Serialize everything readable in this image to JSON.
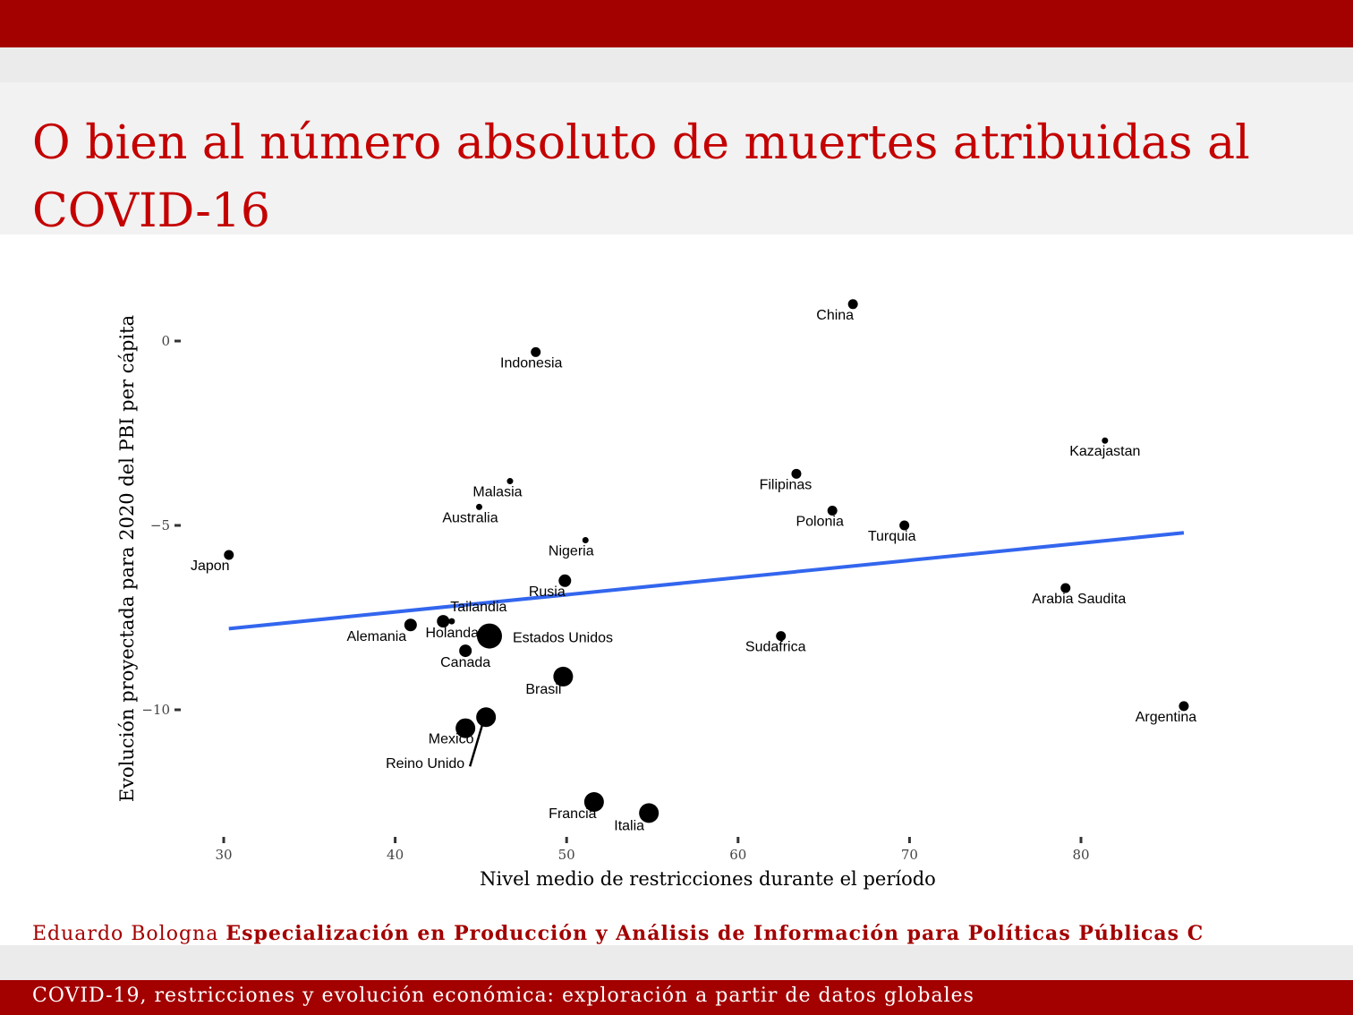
{
  "slide": {
    "title": "O bien al número absoluto de muertes atribuidas al COVID-16",
    "footer_author": "Eduardo Bologna",
    "footer_course": "Especialización en Producción y Análisis de Información para Políticas Públicas C",
    "bottom_title": "COVID-19, restricciones y evolución económica: exploración a partir de datos globales"
  },
  "colors": {
    "brand": "#a30000",
    "title": "#c40000",
    "fit_line": "#3366ee",
    "points": "#000000"
  },
  "chart_data": {
    "type": "scatter",
    "xlabel": "Nivel medio de restricciones durante el período",
    "ylabel": "Evolución proyectada para 2020 del PBI per cápita",
    "xlim": [
      27,
      89
    ],
    "ylim": [
      -13.5,
      1.6
    ],
    "xticks": [
      30,
      40,
      50,
      60,
      70,
      80
    ],
    "yticks": [
      0,
      -5,
      -10
    ],
    "ytick_labels": [
      "0",
      "−5",
      "−10"
    ],
    "grid": false,
    "legend": "none",
    "points": [
      {
        "label": "China",
        "x": 66.7,
        "y": 1.0,
        "size": "small"
      },
      {
        "label": "Indonesia",
        "x": 48.2,
        "y": -0.3,
        "size": "small"
      },
      {
        "label": "Kazajastan",
        "x": 81.4,
        "y": -2.7,
        "size": "tiny"
      },
      {
        "label": "Filipinas",
        "x": 63.4,
        "y": -3.6,
        "size": "small"
      },
      {
        "label": "Malasia",
        "x": 46.7,
        "y": -3.8,
        "size": "tiny"
      },
      {
        "label": "Australia",
        "x": 44.9,
        "y": -4.5,
        "size": "tiny"
      },
      {
        "label": "Polonia",
        "x": 65.5,
        "y": -4.6,
        "size": "small"
      },
      {
        "label": "Turquia",
        "x": 69.7,
        "y": -5.0,
        "size": "small"
      },
      {
        "label": "Nigeria",
        "x": 51.1,
        "y": -5.4,
        "size": "tiny"
      },
      {
        "label": "Japon",
        "x": 30.3,
        "y": -5.8,
        "size": "small"
      },
      {
        "label": "Rusia",
        "x": 49.9,
        "y": -6.5,
        "size": "medium"
      },
      {
        "label": "Arabia Saudita",
        "x": 79.1,
        "y": -6.7,
        "size": "small"
      },
      {
        "label": "Tailandia",
        "x": 43.3,
        "y": -7.6,
        "size": "tiny"
      },
      {
        "label": "Holanda",
        "x": 42.8,
        "y": -7.6,
        "size": "medium"
      },
      {
        "label": "Alemania",
        "x": 40.9,
        "y": -7.7,
        "size": "medium"
      },
      {
        "label": "Estados Unidos",
        "x": 45.5,
        "y": -8.0,
        "size": "xlarge"
      },
      {
        "label": "Sudafrica",
        "x": 62.5,
        "y": -8.0,
        "size": "small"
      },
      {
        "label": "Canada",
        "x": 44.1,
        "y": -8.4,
        "size": "medium"
      },
      {
        "label": "Brasil",
        "x": 49.8,
        "y": -9.1,
        "size": "large"
      },
      {
        "label": "Argentina",
        "x": 86.0,
        "y": -9.9,
        "size": "small"
      },
      {
        "label": "Reino Unido",
        "x": 45.3,
        "y": -10.2,
        "size": "large"
      },
      {
        "label": "Mexico",
        "x": 44.1,
        "y": -10.5,
        "size": "large"
      },
      {
        "label": "Francia",
        "x": 51.6,
        "y": -12.5,
        "size": "large"
      },
      {
        "label": "Italia",
        "x": 54.8,
        "y": -12.8,
        "size": "large"
      }
    ],
    "fit_line": {
      "x": [
        30.3,
        86.0
      ],
      "y": [
        -7.8,
        -5.2
      ]
    }
  }
}
